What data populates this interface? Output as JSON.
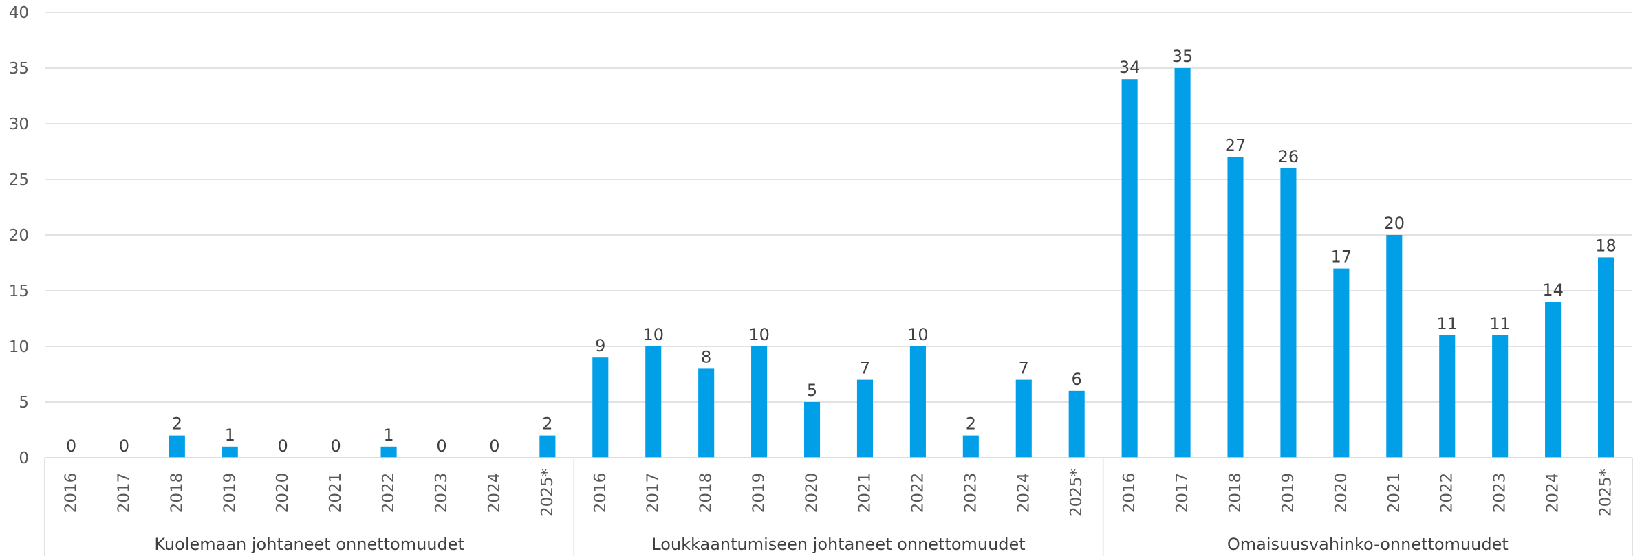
{
  "chart_data": {
    "type": "bar",
    "title": "",
    "xlabel": "",
    "ylabel": "",
    "ylim": [
      0,
      40
    ],
    "yticks": [
      0,
      5,
      10,
      15,
      20,
      25,
      30,
      35,
      40
    ],
    "grid": true,
    "legend": "none",
    "bar_color": "#009FE8",
    "gridline_color": "#D9D9D9",
    "groups": [
      {
        "name": "Kuolemaan johtaneet onnettomuudet",
        "categories": [
          "2016",
          "2017",
          "2018",
          "2019",
          "2020",
          "2021",
          "2022",
          "2023",
          "2024",
          "2025*"
        ],
        "values": [
          0,
          0,
          2,
          1,
          0,
          0,
          1,
          0,
          0,
          2
        ]
      },
      {
        "name": "Loukkaantumiseen johtaneet onnettomuudet",
        "categories": [
          "2016",
          "2017",
          "2018",
          "2019",
          "2020",
          "2021",
          "2022",
          "2023",
          "2024",
          "2025*"
        ],
        "values": [
          9,
          10,
          8,
          10,
          5,
          7,
          10,
          2,
          7,
          6
        ]
      },
      {
        "name": "Omaisuusvahinko-onnettomuudet",
        "categories": [
          "2016",
          "2017",
          "2018",
          "2019",
          "2020",
          "2021",
          "2022",
          "2023",
          "2024",
          "2025*"
        ],
        "values": [
          34,
          35,
          27,
          26,
          17,
          20,
          11,
          11,
          14,
          18
        ]
      }
    ]
  }
}
